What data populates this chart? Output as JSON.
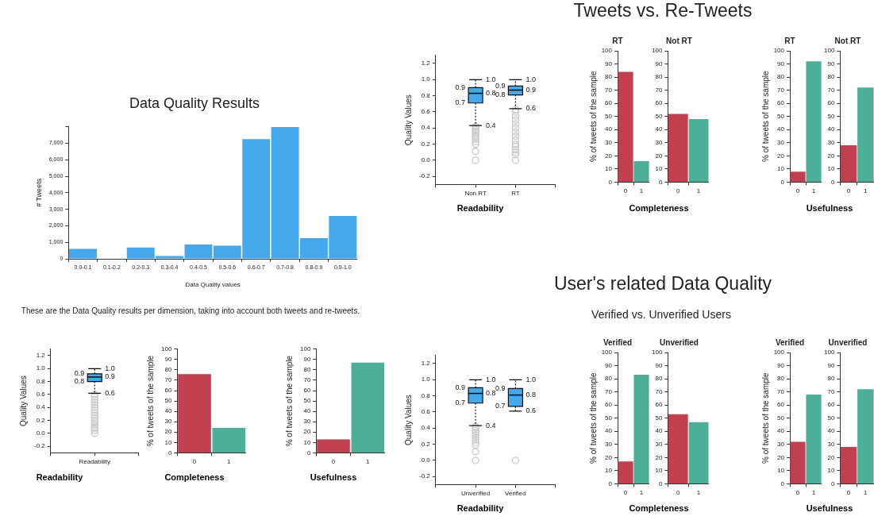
{
  "chart_data": [
    {
      "type": "other",
      "annotations": [
        "Tweets vs. Re-Tweets",
        "User's related Data Quality",
        "Verified vs. Unverified Users",
        "These are the Data Quality results per dimension, taking into account both tweets and re-tweets."
      ]
    },
    {
      "type": "bar",
      "title": "Data Quality Results",
      "xlabel": "Data Quality values",
      "ylabel": "# Tweets",
      "categories": [
        "0.0-0.1",
        "0.1-0.2",
        "0.2-0.3",
        "0.3-0.4",
        "0.4-0.5",
        "0.5-0.6",
        "0.6-0.7",
        "0.7-0.8",
        "0.8-0.9",
        "0.9-1.0"
      ],
      "values": [
        600,
        0,
        680,
        170,
        870,
        790,
        7250,
        7980,
        1250,
        2600
      ],
      "color": "#45a7ec",
      "ylim": [
        0,
        8000
      ],
      "yticks": [
        0,
        {
          "value": 1000,
          "label": "1,000"
        },
        {
          "value": 2000,
          "label": "2,000"
        },
        {
          "value": 3000,
          "label": "3,000"
        },
        {
          "value": 4000,
          "label": "4,000"
        },
        {
          "value": 5000,
          "label": "5,000"
        },
        {
          "value": 6000,
          "label": "6,000"
        },
        {
          "value": 7000,
          "label": "7,000"
        },
        {
          "value": 8000,
          "label": null
        }
      ]
    },
    {
      "type": "box",
      "xlabel": "Readability",
      "ylabel": "Quality Values",
      "categories": [
        "Non RT",
        "RT"
      ],
      "color": "#45a7ec",
      "boxes": [
        {
          "low": 0.43,
          "q1": 0.71,
          "median": 0.83,
          "q3": 0.9,
          "high": 1.0,
          "outliers": [
            0,
            0.11,
            0.2,
            0.23,
            0.26,
            0.29,
            0.31,
            0.34,
            0.36,
            0.38,
            0.4,
            0.42
          ]
        },
        {
          "low": 0.64,
          "q1": 0.81,
          "median": 0.87,
          "q3": 0.92,
          "high": 1.0,
          "outliers": [
            0,
            0.07,
            0.1,
            0.13,
            0.17,
            0.2,
            0.25,
            0.3,
            0.35,
            0.4,
            0.45,
            0.5,
            0.55,
            0.6,
            0.63
          ]
        }
      ],
      "value_labels": [
        [
          "0.4",
          "0.7",
          "0.8",
          "0.9",
          "1.0"
        ],
        [
          "0.6",
          "0.8",
          "0.9",
          "0.9",
          "1.0"
        ]
      ],
      "ylim": [
        -0.3,
        1.3
      ],
      "yticks": [
        -0.2,
        {
          "value": 0,
          "label": "0.0"
        },
        0.2,
        0.4,
        0.6,
        0.8,
        {
          "value": 1,
          "label": "1.0"
        },
        1.2
      ]
    },
    {
      "type": "bar",
      "title": "RT",
      "xlabel": "Completeness",
      "ylabel": "% of tweets of the sample",
      "categories": [
        "0",
        "1"
      ],
      "values": [
        84,
        16
      ],
      "colors": [
        "#c0404f",
        "#4daf9a"
      ],
      "ylim": [
        0,
        100
      ],
      "yticks": [
        0,
        10,
        20,
        30,
        40,
        50,
        60,
        70,
        80,
        90,
        100
      ]
    },
    {
      "type": "bar",
      "title": "Not RT",
      "categories": [
        "0",
        "1"
      ],
      "values": [
        52,
        48
      ],
      "colors": [
        "#c0404f",
        "#4daf9a"
      ],
      "ylim": [
        0,
        100
      ],
      "yticks": [
        0,
        10,
        20,
        30,
        40,
        50,
        60,
        70,
        80,
        90,
        100
      ]
    },
    {
      "type": "bar",
      "title": "RT",
      "xlabel": "Usefulness",
      "ylabel": "% of tweets of the sample",
      "categories": [
        "0",
        "1"
      ],
      "values": [
        8,
        92
      ],
      "colors": [
        "#c0404f",
        "#4daf9a"
      ],
      "ylim": [
        0,
        100
      ],
      "yticks": [
        0,
        10,
        20,
        30,
        40,
        50,
        60,
        70,
        80,
        90,
        100
      ]
    },
    {
      "type": "bar",
      "title": "Not RT",
      "categories": [
        "0",
        "1"
      ],
      "values": [
        28,
        72
      ],
      "colors": [
        "#c0404f",
        "#4daf9a"
      ],
      "ylim": [
        0,
        100
      ],
      "yticks": [
        0,
        10,
        20,
        30,
        40,
        50,
        60,
        70,
        80,
        90,
        100
      ]
    },
    {
      "type": "box",
      "xlabel": "Readability",
      "ylabel": "Quality Values",
      "categories": [
        "Readability"
      ],
      "color": "#45a7ec",
      "boxes": [
        {
          "low": 0.62,
          "q1": 0.8,
          "median": 0.87,
          "q3": 0.92,
          "high": 1.0,
          "outliers": [
            0,
            0.05,
            0.08,
            0.1,
            0.13,
            0.16,
            0.2,
            0.24,
            0.28,
            0.32,
            0.36,
            0.4,
            0.44,
            0.48,
            0.52,
            0.56,
            0.6
          ]
        }
      ],
      "value_labels": [
        [
          "0.6",
          "0.8",
          "0.9",
          "0.9",
          "1.0"
        ]
      ],
      "ylim": [
        -0.3,
        1.3
      ],
      "yticks": [
        -0.2,
        {
          "value": 0,
          "label": "0.0"
        },
        0.2,
        0.4,
        0.6,
        0.8,
        {
          "value": 1,
          "label": "1.0"
        },
        1.2
      ]
    },
    {
      "type": "bar",
      "xlabel": "Completeness",
      "ylabel": "% of tweets of the sample",
      "categories": [
        "0",
        "1"
      ],
      "values": [
        76,
        24
      ],
      "colors": [
        "#c0404f",
        "#4daf9a"
      ],
      "ylim": [
        0,
        100
      ],
      "yticks": [
        0,
        10,
        20,
        30,
        40,
        50,
        60,
        70,
        80,
        90,
        100
      ]
    },
    {
      "type": "bar",
      "xlabel": "Usefulness",
      "ylabel": "% of tweets of the sample",
      "categories": [
        "0",
        "1"
      ],
      "values": [
        13,
        87
      ],
      "colors": [
        "#c0404f",
        "#4daf9a"
      ],
      "ylim": [
        0,
        100
      ],
      "yticks": [
        0,
        10,
        20,
        30,
        40,
        50,
        60,
        70,
        80,
        90,
        100
      ]
    },
    {
      "type": "box",
      "xlabel": "Readability",
      "ylabel": "Quality Values",
      "categories": [
        "Unverified",
        "Verified"
      ],
      "color": "#45a7ec",
      "boxes": [
        {
          "low": 0.43,
          "q1": 0.71,
          "median": 0.83,
          "q3": 0.9,
          "high": 1.0,
          "outliers": [
            0,
            0.11,
            0.19,
            0.22,
            0.25,
            0.28,
            0.31,
            0.34,
            0.37,
            0.4,
            0.42
          ]
        },
        {
          "low": 0.61,
          "q1": 0.67,
          "median": 0.81,
          "q3": 0.89,
          "high": 1.0,
          "outliers": [
            0
          ]
        }
      ],
      "value_labels": [
        [
          "0.4",
          "0.7",
          "0.8",
          "0.9",
          "1.0"
        ],
        [
          "0.6",
          "0.7",
          "0.8",
          "0.9",
          "1.0"
        ]
      ],
      "ylim": [
        -0.3,
        1.3
      ],
      "yticks": [
        -0.2,
        {
          "value": 0,
          "label": "0.0"
        },
        0.2,
        0.4,
        0.6,
        0.8,
        {
          "value": 1,
          "label": "1.0"
        },
        1.2
      ]
    },
    {
      "type": "bar",
      "title": "Verified",
      "xlabel": "Completeness",
      "ylabel": "% of tweets of the sample",
      "categories": [
        "0",
        "1"
      ],
      "values": [
        17,
        83
      ],
      "colors": [
        "#c0404f",
        "#4daf9a"
      ],
      "ylim": [
        0,
        100
      ],
      "yticks": [
        0,
        10,
        20,
        30,
        40,
        50,
        60,
        70,
        80,
        90,
        100
      ]
    },
    {
      "type": "bar",
      "title": "Unverified",
      "categories": [
        "0",
        "1"
      ],
      "values": [
        53,
        47
      ],
      "colors": [
        "#c0404f",
        "#4daf9a"
      ],
      "ylim": [
        0,
        100
      ],
      "yticks": [
        0,
        10,
        20,
        30,
        40,
        50,
        60,
        70,
        80,
        90,
        100
      ]
    },
    {
      "type": "bar",
      "title": "Verified",
      "xlabel": "Usefulness",
      "ylabel": "% of tweets of the sample",
      "categories": [
        "0",
        "1"
      ],
      "values": [
        32,
        68
      ],
      "colors": [
        "#c0404f",
        "#4daf9a"
      ],
      "ylim": [
        0,
        100
      ],
      "yticks": [
        0,
        10,
        20,
        30,
        40,
        50,
        60,
        70,
        80,
        90,
        100
      ]
    },
    {
      "type": "bar",
      "title": "Unverified",
      "categories": [
        "0",
        "1"
      ],
      "values": [
        28,
        72
      ],
      "colors": [
        "#c0404f",
        "#4daf9a"
      ],
      "ylim": [
        0,
        100
      ],
      "yticks": [
        0,
        10,
        20,
        30,
        40,
        50,
        60,
        70,
        80,
        90,
        100
      ]
    }
  ]
}
